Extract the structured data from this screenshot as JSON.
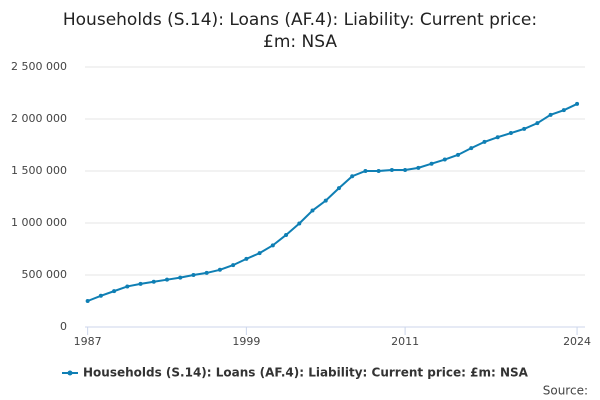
{
  "chart_data": {
    "type": "line",
    "title": "Households (S.14): Loans (AF.4): Liability: Current price: £m: NSA",
    "source": "Source:",
    "x": [
      1987,
      1988,
      1989,
      1990,
      1991,
      1992,
      1993,
      1994,
      1995,
      1996,
      1997,
      1998,
      1999,
      2000,
      2001,
      2002,
      2003,
      2004,
      2005,
      2006,
      2007,
      2008,
      2009,
      2010,
      2011,
      2012,
      2013,
      2014,
      2015,
      2016,
      2017,
      2018,
      2019,
      2020,
      2021,
      2022,
      2023,
      2024
    ],
    "series": [
      {
        "name": "Households (S.14): Loans (AF.4): Liability: Current price: £m: NSA",
        "color": "#0f7fb4",
        "values": [
          250000,
          300000,
          345000,
          390000,
          415000,
          435000,
          455000,
          475000,
          500000,
          520000,
          550000,
          595000,
          655000,
          710000,
          785000,
          885000,
          995000,
          1120000,
          1215000,
          1335000,
          1450000,
          1500000,
          1500000,
          1510000,
          1510000,
          1530000,
          1570000,
          1610000,
          1655000,
          1720000,
          1780000,
          1825000,
          1865000,
          1905000,
          1960000,
          2040000,
          2085000,
          2145000
        ]
      }
    ],
    "xlim": [
      1986.8,
      2024.6
    ],
    "xticks": [
      1987,
      1999,
      2011,
      2024
    ],
    "ylim": [
      0,
      2500000
    ],
    "yticks": [
      0,
      {
        "value": 500000,
        "label": "500 000"
      },
      {
        "value": 1000000,
        "label": "1 000 000"
      },
      {
        "value": 1500000,
        "label": "1 500 000"
      },
      {
        "value": 2000000,
        "label": "2 000 000"
      },
      {
        "value": 2500000,
        "label": "2 500 000"
      }
    ],
    "grid": true
  }
}
